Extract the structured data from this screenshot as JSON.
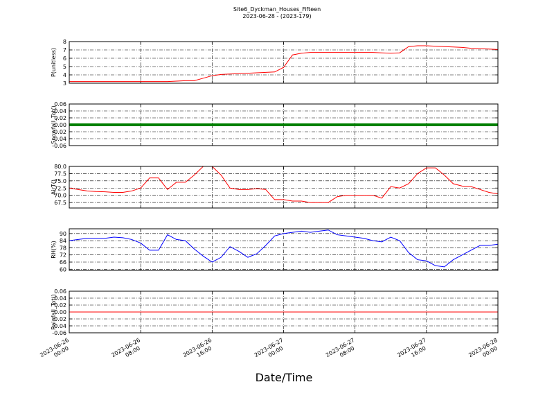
{
  "chart_data": [
    {
      "type": "line",
      "title": "Site6_Dyckman_Houses_Fifteen",
      "subtitle": "2023-06-28 - (2023-179)",
      "ylabel": "P(unitless)",
      "xlim": [
        "2023-06-26 00:00",
        "2023-06-28 00:00"
      ],
      "ylim": [
        3,
        8
      ],
      "yticks": [
        3,
        4,
        5,
        6,
        7,
        8
      ],
      "grid": true,
      "x": [
        "2023-06-26 00:00",
        "2023-06-26 01:00",
        "2023-06-26 02:00",
        "2023-06-26 03:00",
        "2023-06-26 04:00",
        "2023-06-26 05:00",
        "2023-06-26 06:00",
        "2023-06-26 07:00",
        "2023-06-26 08:00",
        "2023-06-26 09:00",
        "2023-06-26 10:00",
        "2023-06-26 11:00",
        "2023-06-26 12:00",
        "2023-06-26 13:00",
        "2023-06-26 14:00",
        "2023-06-26 15:00",
        "2023-06-26 16:00",
        "2023-06-26 17:00",
        "2023-06-26 18:00",
        "2023-06-26 19:00",
        "2023-06-26 20:00",
        "2023-06-26 21:00",
        "2023-06-26 22:00",
        "2023-06-26 23:00",
        "2023-06-27 00:00",
        "2023-06-27 01:00",
        "2023-06-27 02:00",
        "2023-06-27 03:00",
        "2023-06-27 04:00",
        "2023-06-27 05:00",
        "2023-06-27 06:00",
        "2023-06-27 07:00",
        "2023-06-27 08:00",
        "2023-06-27 09:00",
        "2023-06-27 10:00",
        "2023-06-27 11:00",
        "2023-06-27 12:00",
        "2023-06-27 13:00",
        "2023-06-27 14:00",
        "2023-06-27 15:00",
        "2023-06-27 16:00",
        "2023-06-27 17:00",
        "2023-06-27 18:00",
        "2023-06-27 19:00",
        "2023-06-27 20:00",
        "2023-06-27 21:00",
        "2023-06-27 22:00",
        "2023-06-27 23:00",
        "2023-06-28 00:00"
      ],
      "series": [
        {
          "color": "#ff0000",
          "width": 1,
          "values": [
            3.2,
            3.2,
            3.2,
            3.2,
            3.2,
            3.2,
            3.2,
            3.2,
            3.2,
            3.2,
            3.2,
            3.2,
            3.25,
            3.3,
            3.3,
            3.6,
            3.9,
            4.05,
            4.1,
            4.15,
            4.2,
            4.25,
            4.3,
            4.35,
            4.9,
            6.4,
            6.6,
            6.7,
            6.7,
            6.7,
            6.7,
            6.7,
            6.7,
            6.7,
            6.7,
            6.65,
            6.6,
            6.65,
            7.4,
            7.5,
            7.5,
            7.45,
            7.4,
            7.35,
            7.3,
            7.2,
            7.15,
            7.1,
            7.05
          ]
        }
      ]
    },
    {
      "type": "line",
      "ylabel": "Snowfall_Tot()",
      "xlim": [
        "2023-06-26 00:00",
        "2023-06-28 00:00"
      ],
      "ylim": [
        -0.06,
        0.06
      ],
      "yticks": [
        -0.06,
        -0.04,
        -0.02,
        {
          "value": 0,
          "label": "0.00"
        },
        0.02,
        0.04,
        0.06
      ],
      "grid": true,
      "x": [
        "2023-06-26 00:00",
        "2023-06-26 01:00",
        "2023-06-26 02:00",
        "2023-06-26 03:00",
        "2023-06-26 04:00",
        "2023-06-26 05:00",
        "2023-06-26 06:00",
        "2023-06-26 07:00",
        "2023-06-26 08:00",
        "2023-06-26 09:00",
        "2023-06-26 10:00",
        "2023-06-26 11:00",
        "2023-06-26 12:00",
        "2023-06-26 13:00",
        "2023-06-26 14:00",
        "2023-06-26 15:00",
        "2023-06-26 16:00",
        "2023-06-26 17:00",
        "2023-06-26 18:00",
        "2023-06-26 19:00",
        "2023-06-26 20:00",
        "2023-06-26 21:00",
        "2023-06-26 22:00",
        "2023-06-26 23:00",
        "2023-06-27 00:00",
        "2023-06-27 01:00",
        "2023-06-27 02:00",
        "2023-06-27 03:00",
        "2023-06-27 04:00",
        "2023-06-27 05:00",
        "2023-06-27 06:00",
        "2023-06-27 07:00",
        "2023-06-27 08:00",
        "2023-06-27 09:00",
        "2023-06-27 10:00",
        "2023-06-27 11:00",
        "2023-06-27 12:00",
        "2023-06-27 13:00",
        "2023-06-27 14:00",
        "2023-06-27 15:00",
        "2023-06-27 16:00",
        "2023-06-27 17:00",
        "2023-06-27 18:00",
        "2023-06-27 19:00",
        "2023-06-27 20:00",
        "2023-06-27 21:00",
        "2023-06-27 22:00",
        "2023-06-27 23:00",
        "2023-06-28 00:00"
      ],
      "series": [
        {
          "color": "#008000",
          "width": 4,
          "values": [
            0,
            0,
            0,
            0,
            0,
            0,
            0,
            0,
            0,
            0,
            0,
            0,
            0,
            0,
            0,
            0,
            0,
            0,
            0,
            0,
            0,
            0,
            0,
            0,
            0,
            0,
            0,
            0,
            0,
            0,
            0,
            0,
            0,
            0,
            0,
            0,
            0,
            0,
            0,
            0,
            0,
            0,
            0,
            0,
            0,
            0,
            0,
            0,
            0
          ]
        }
      ]
    },
    {
      "type": "line",
      "ylabel": "AirT()",
      "xlim": [
        "2023-06-26 00:00",
        "2023-06-28 00:00"
      ],
      "ylim": [
        65.6,
        80
      ],
      "yticks": [
        67.5,
        {
          "value": 70,
          "label": "70.0"
        },
        72.5,
        {
          "value": 75,
          "label": "75.0"
        },
        77.5,
        {
          "value": 80,
          "label": "80.0"
        }
      ],
      "grid": true,
      "x": [
        "2023-06-26 00:00",
        "2023-06-26 01:00",
        "2023-06-26 02:00",
        "2023-06-26 03:00",
        "2023-06-26 04:00",
        "2023-06-26 05:00",
        "2023-06-26 06:00",
        "2023-06-26 07:00",
        "2023-06-26 08:00",
        "2023-06-26 09:00",
        "2023-06-26 10:00",
        "2023-06-26 11:00",
        "2023-06-26 12:00",
        "2023-06-26 13:00",
        "2023-06-26 14:00",
        "2023-06-26 15:00",
        "2023-06-26 16:00",
        "2023-06-26 17:00",
        "2023-06-26 18:00",
        "2023-06-26 19:00",
        "2023-06-26 20:00",
        "2023-06-26 21:00",
        "2023-06-26 22:00",
        "2023-06-26 23:00",
        "2023-06-27 00:00",
        "2023-06-27 01:00",
        "2023-06-27 02:00",
        "2023-06-27 03:00",
        "2023-06-27 04:00",
        "2023-06-27 05:00",
        "2023-06-27 06:00",
        "2023-06-27 07:00",
        "2023-06-27 08:00",
        "2023-06-27 09:00",
        "2023-06-27 10:00",
        "2023-06-27 11:00",
        "2023-06-27 12:00",
        "2023-06-27 13:00",
        "2023-06-27 14:00",
        "2023-06-27 15:00",
        "2023-06-27 16:00",
        "2023-06-27 17:00",
        "2023-06-27 18:00",
        "2023-06-27 19:00",
        "2023-06-27 20:00",
        "2023-06-27 21:00",
        "2023-06-27 22:00",
        "2023-06-27 23:00",
        "2023-06-28 00:00"
      ],
      "series": [
        {
          "color": "#ff0000",
          "width": 1,
          "values": [
            72.5,
            72,
            71.5,
            71.3,
            71.2,
            71,
            71,
            71.5,
            72.5,
            76,
            76,
            72,
            74.5,
            74.5,
            77,
            80,
            80,
            77,
            72.5,
            72,
            72,
            72.3,
            72,
            68.5,
            68.5,
            68,
            68,
            67.5,
            67.5,
            67.5,
            69.5,
            70,
            70,
            70,
            70,
            69,
            73,
            72.5,
            74,
            77.5,
            79.5,
            79.5,
            77,
            74,
            73.2,
            73,
            72,
            71,
            70.5
          ]
        }
      ]
    },
    {
      "type": "line",
      "ylabel": "RH(%)",
      "xlim": [
        "2023-06-26 00:00",
        "2023-06-28 00:00"
      ],
      "ylim": [
        59,
        94
      ],
      "yticks": [
        60,
        66,
        72,
        78,
        84,
        90
      ],
      "grid": true,
      "x": [
        "2023-06-26 00:00",
        "2023-06-26 01:00",
        "2023-06-26 02:00",
        "2023-06-26 03:00",
        "2023-06-26 04:00",
        "2023-06-26 05:00",
        "2023-06-26 06:00",
        "2023-06-26 07:00",
        "2023-06-26 08:00",
        "2023-06-26 09:00",
        "2023-06-26 10:00",
        "2023-06-26 11:00",
        "2023-06-26 12:00",
        "2023-06-26 13:00",
        "2023-06-26 14:00",
        "2023-06-26 15:00",
        "2023-06-26 16:00",
        "2023-06-26 17:00",
        "2023-06-26 18:00",
        "2023-06-26 19:00",
        "2023-06-26 20:00",
        "2023-06-26 21:00",
        "2023-06-26 22:00",
        "2023-06-26 23:00",
        "2023-06-27 00:00",
        "2023-06-27 01:00",
        "2023-06-27 02:00",
        "2023-06-27 03:00",
        "2023-06-27 04:00",
        "2023-06-27 05:00",
        "2023-06-27 06:00",
        "2023-06-27 07:00",
        "2023-06-27 08:00",
        "2023-06-27 09:00",
        "2023-06-27 10:00",
        "2023-06-27 11:00",
        "2023-06-27 12:00",
        "2023-06-27 13:00",
        "2023-06-27 14:00",
        "2023-06-27 15:00",
        "2023-06-27 16:00",
        "2023-06-27 17:00",
        "2023-06-27 18:00",
        "2023-06-27 19:00",
        "2023-06-27 20:00",
        "2023-06-27 21:00",
        "2023-06-27 22:00",
        "2023-06-27 23:00",
        "2023-06-28 00:00"
      ],
      "series": [
        {
          "color": "#0000ff",
          "width": 1,
          "values": [
            84,
            85,
            86,
            86,
            86,
            87,
            86.5,
            85,
            82,
            76,
            76,
            89,
            85,
            84,
            77,
            71,
            66,
            70,
            79,
            75,
            70,
            73,
            80,
            88,
            90,
            91,
            92,
            91,
            92,
            93,
            89,
            88,
            87,
            86,
            84,
            83,
            87,
            84,
            74,
            68,
            67,
            63,
            62,
            68,
            72,
            76,
            80,
            80,
            81
          ]
        }
      ]
    },
    {
      "type": "line",
      "ylabel": "Rainfall_Tot()",
      "xlabel": "Date/Time",
      "xlim": [
        "2023-06-26 00:00",
        "2023-06-28 00:00"
      ],
      "ylim": [
        -0.06,
        0.06
      ],
      "yticks": [
        -0.06,
        -0.04,
        -0.02,
        {
          "value": 0,
          "label": "0.00"
        },
        0.02,
        0.04,
        0.06
      ],
      "grid": true,
      "xticks": [
        "2023-06-26 00:00",
        "2023-06-26 08:00",
        "2023-06-26 16:00",
        "2023-06-27 00:00",
        "2023-06-27 08:00",
        "2023-06-27 16:00",
        "2023-06-28 00:00"
      ],
      "x": [
        "2023-06-26 00:00",
        "2023-06-26 01:00",
        "2023-06-26 02:00",
        "2023-06-26 03:00",
        "2023-06-26 04:00",
        "2023-06-26 05:00",
        "2023-06-26 06:00",
        "2023-06-26 07:00",
        "2023-06-26 08:00",
        "2023-06-26 09:00",
        "2023-06-26 10:00",
        "2023-06-26 11:00",
        "2023-06-26 12:00",
        "2023-06-26 13:00",
        "2023-06-26 14:00",
        "2023-06-26 15:00",
        "2023-06-26 16:00",
        "2023-06-26 17:00",
        "2023-06-26 18:00",
        "2023-06-26 19:00",
        "2023-06-26 20:00",
        "2023-06-26 21:00",
        "2023-06-26 22:00",
        "2023-06-26 23:00",
        "2023-06-27 00:00",
        "2023-06-27 01:00",
        "2023-06-27 02:00",
        "2023-06-27 03:00",
        "2023-06-27 04:00",
        "2023-06-27 05:00",
        "2023-06-27 06:00",
        "2023-06-27 07:00",
        "2023-06-27 08:00",
        "2023-06-27 09:00",
        "2023-06-27 10:00",
        "2023-06-27 11:00",
        "2023-06-27 12:00",
        "2023-06-27 13:00",
        "2023-06-27 14:00",
        "2023-06-27 15:00",
        "2023-06-27 16:00",
        "2023-06-27 17:00",
        "2023-06-27 18:00",
        "2023-06-27 19:00",
        "2023-06-27 20:00",
        "2023-06-27 21:00",
        "2023-06-27 22:00",
        "2023-06-27 23:00",
        "2023-06-28 00:00"
      ],
      "series": [
        {
          "color": "#ff0000",
          "width": 1,
          "values": [
            0,
            0,
            0,
            0,
            0,
            0,
            0,
            0,
            0,
            0,
            0,
            0,
            0,
            0,
            0,
            0,
            0,
            0,
            0,
            0,
            0,
            0,
            0,
            0,
            0,
            0,
            0,
            0,
            0,
            0,
            0,
            0,
            0,
            0,
            0,
            0,
            0,
            0,
            0,
            0,
            0,
            0,
            0,
            0,
            0,
            0,
            0,
            0,
            0
          ]
        }
      ]
    }
  ]
}
